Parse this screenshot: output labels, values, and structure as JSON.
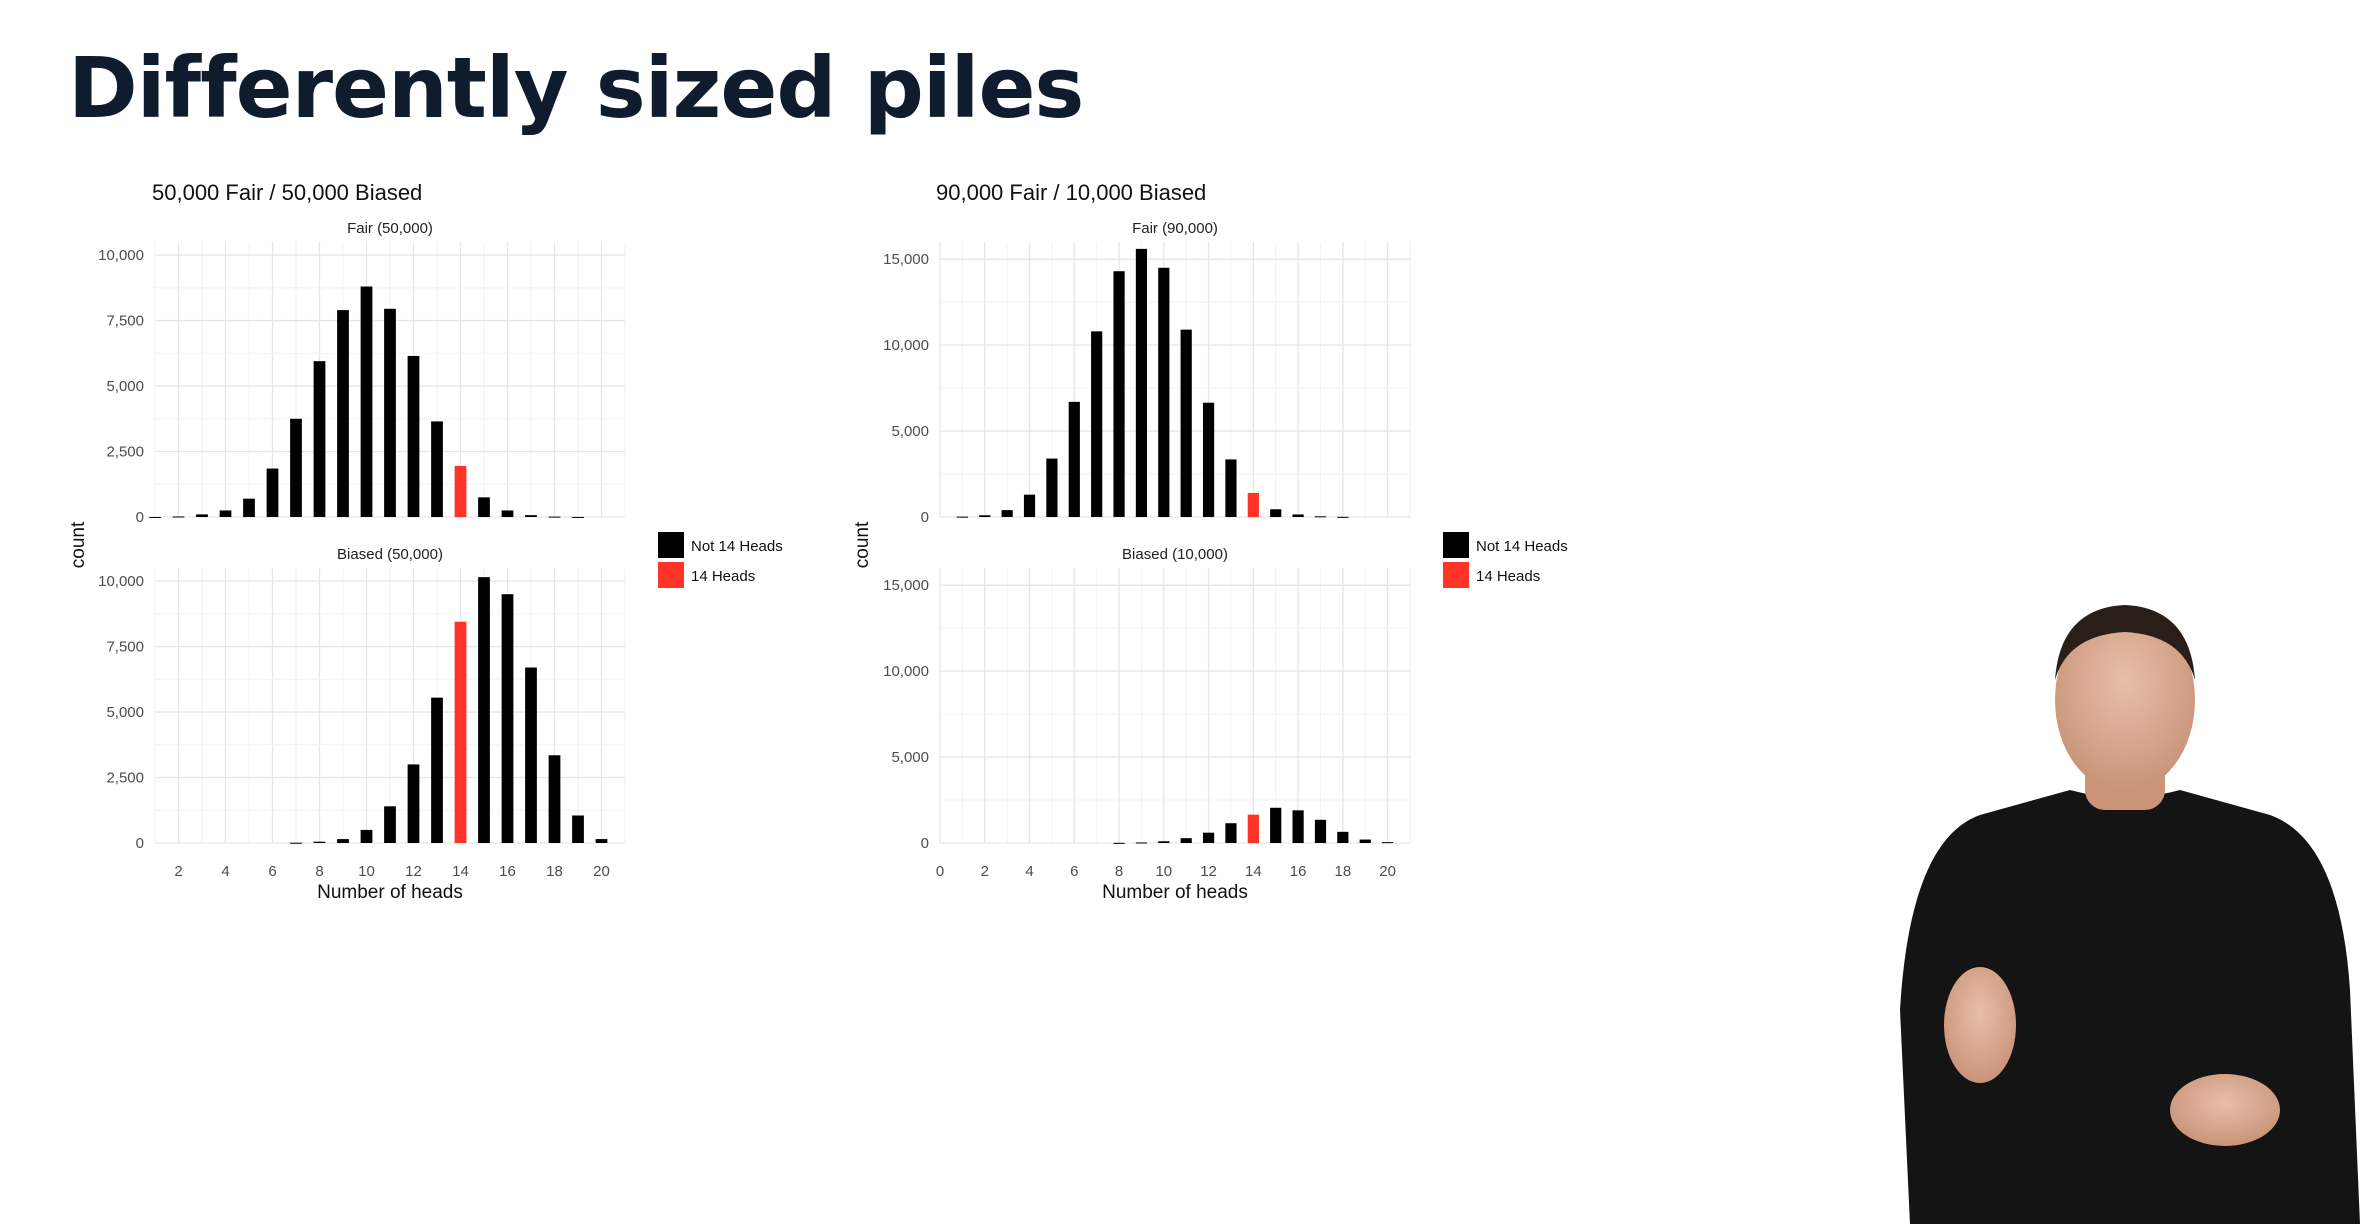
{
  "slide": {
    "title": "Differently sized piles"
  },
  "chart_data": [
    {
      "type": "bar",
      "title": "50,000 Fair / 50,000 Biased",
      "xlabel": "Number of heads",
      "ylabel": "count",
      "legend": {
        "placement": "right",
        "entries": [
          {
            "label": "Not 14 Heads",
            "color": "#000000"
          },
          {
            "label": "14 Heads",
            "color": "#ff3326"
          }
        ]
      },
      "panels": [
        {
          "name": "Fair (50,000)",
          "x": [
            1,
            2,
            3,
            4,
            5,
            6,
            7,
            8,
            9,
            10,
            11,
            12,
            13,
            14,
            15,
            16,
            17,
            18,
            19,
            20
          ],
          "values": [
            2,
            20,
            100,
            250,
            700,
            1850,
            3750,
            5950,
            7900,
            8800,
            7950,
            6150,
            3650,
            1950,
            750,
            250,
            70,
            15,
            2,
            0
          ],
          "highlight_x": 14,
          "xlim": [
            1,
            21
          ],
          "ylim": [
            0,
            10500
          ],
          "yticks": [
            0,
            2500,
            5000,
            7500,
            10000
          ],
          "ytick_labels": [
            "0",
            "2,500",
            "5,000",
            "7,500",
            "10,000"
          ],
          "xticks": [
            2,
            4,
            6,
            8,
            10,
            12,
            14,
            16,
            18,
            20
          ],
          "grid": true
        },
        {
          "name": "Biased (50,000)",
          "x": [
            1,
            2,
            3,
            4,
            5,
            6,
            7,
            8,
            9,
            10,
            11,
            12,
            13,
            14,
            15,
            16,
            17,
            18,
            19,
            20
          ],
          "values": [
            0,
            0,
            0,
            0,
            0,
            0,
            10,
            50,
            150,
            500,
            1400,
            3000,
            5550,
            8450,
            10150,
            9500,
            6700,
            3350,
            1050,
            150
          ],
          "highlight_x": 14,
          "xlim": [
            1,
            21
          ],
          "ylim": [
            0,
            10500
          ],
          "yticks": [
            0,
            2500,
            5000,
            7500,
            10000
          ],
          "ytick_labels": [
            "0",
            "2,500",
            "5,000",
            "7,500",
            "10,000"
          ],
          "xticks": [
            2,
            4,
            6,
            8,
            10,
            12,
            14,
            16,
            18,
            20
          ],
          "xtick_labels": [
            "2",
            "4",
            "6",
            "8",
            "10",
            "12",
            "14",
            "16",
            "18",
            "20"
          ],
          "grid": true
        }
      ]
    },
    {
      "type": "bar",
      "title": "90,000 Fair / 10,000 Biased",
      "xlabel": "Number of heads",
      "ylabel": "count",
      "legend": {
        "placement": "right",
        "entries": [
          {
            "label": "Not 14 Heads",
            "color": "#000000"
          },
          {
            "label": "14 Heads",
            "color": "#ff3326"
          }
        ]
      },
      "panels": [
        {
          "name": "Fair (90,000)",
          "x": [
            1,
            2,
            3,
            4,
            5,
            6,
            7,
            8,
            9,
            10,
            11,
            12,
            13,
            14,
            15,
            16,
            17,
            18,
            19,
            20
          ],
          "values": [
            20,
            100,
            400,
            1300,
            3400,
            6700,
            10800,
            14300,
            15600,
            14500,
            10900,
            6650,
            3350,
            1400,
            450,
            150,
            40,
            10,
            0,
            0
          ],
          "highlight_x": 14,
          "xlim": [
            0,
            21
          ],
          "ylim": [
            0,
            16000
          ],
          "yticks": [
            0,
            5000,
            10000,
            15000
          ],
          "ytick_labels": [
            "0",
            "5,000",
            "10,000",
            "15,000"
          ],
          "xticks": [
            0,
            2,
            4,
            6,
            8,
            10,
            12,
            14,
            16,
            18,
            20
          ],
          "grid": true
        },
        {
          "name": "Biased (10,000)",
          "x": [
            8,
            9,
            10,
            11,
            12,
            13,
            14,
            15,
            16,
            17,
            18,
            19,
            20
          ],
          "values": [
            10,
            30,
            100,
            280,
            600,
            1150,
            1650,
            2050,
            1900,
            1350,
            650,
            200,
            50
          ],
          "highlight_x": 14,
          "xlim": [
            0,
            21
          ],
          "ylim": [
            0,
            16000
          ],
          "yticks": [
            0,
            5000,
            10000,
            15000
          ],
          "ytick_labels": [
            "0",
            "5,000",
            "10,000",
            "15,000"
          ],
          "xticks": [
            0,
            2,
            4,
            6,
            8,
            10,
            12,
            14,
            16,
            18,
            20
          ],
          "xtick_labels": [
            "0",
            "2",
            "4",
            "6",
            "8",
            "10",
            "12",
            "14",
            "16",
            "18",
            "20"
          ],
          "grid": true
        }
      ]
    }
  ]
}
